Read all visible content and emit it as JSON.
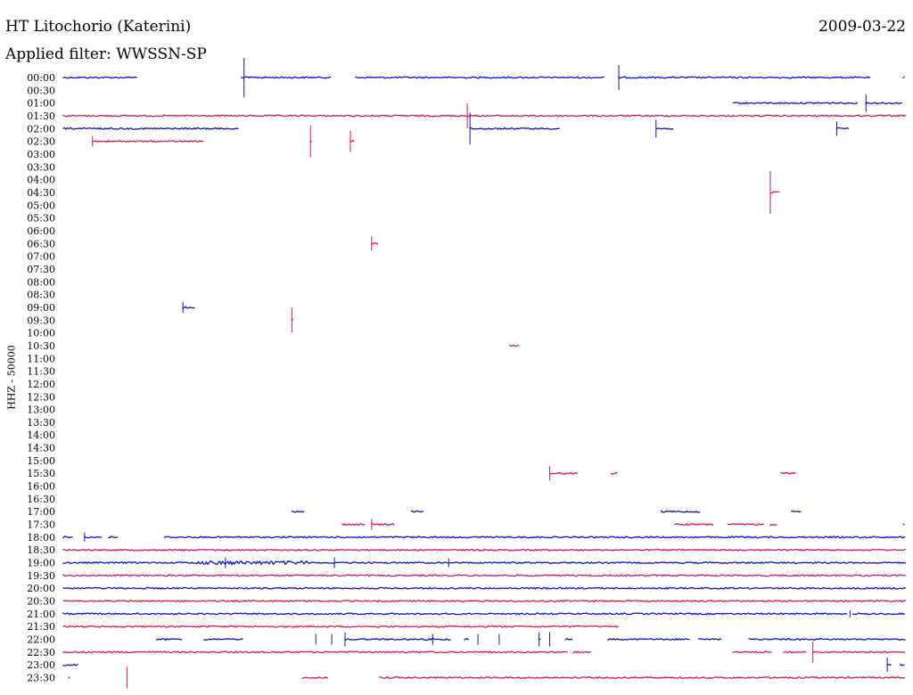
{
  "header": {
    "station": "HT Litochorio (Katerini)",
    "date": "2009-03-22",
    "filter": "Applied filter: WWSSN-SP"
  },
  "chart_data": {
    "type": "line",
    "title": "HT Litochorio (Katerini)",
    "ylabel": "HHZ - 50000",
    "colors": {
      "odd": "#1010d0",
      "even": "#e0164a"
    },
    "x_unit": "minutes within 30-minute row",
    "row_minutes": 30,
    "rows": [
      {
        "label": "00:00",
        "segments": [
          [
            0,
            2.8
          ],
          [
            6.7,
            10.1
          ],
          [
            11,
            20.4
          ],
          [
            20.9,
            30.4
          ],
          [
            31.6,
            31.7
          ]
        ],
        "spikes": [
          [
            6.8,
            22
          ],
          [
            20.9,
            14
          ]
        ]
      },
      {
        "label": "00:30",
        "segments": [],
        "spikes": []
      },
      {
        "label": "01:00",
        "segments": [
          [
            25.2,
            29.9
          ],
          [
            30.2,
            31.6
          ]
        ],
        "spikes": [
          [
            30.2,
            10
          ]
        ]
      },
      {
        "label": "01:30",
        "segments": [
          [
            0,
            31.7
          ]
        ],
        "spikes": [
          [
            15.2,
            14
          ]
        ]
      },
      {
        "label": "02:00",
        "segments": [
          [
            0,
            6.6
          ],
          [
            15.3,
            18.7
          ],
          [
            22.3,
            23
          ],
          [
            29.1,
            29.6
          ]
        ],
        "spikes": [
          [
            15.3,
            18
          ],
          [
            22.3,
            10
          ],
          [
            29.1,
            8
          ]
        ]
      },
      {
        "label": "02:30",
        "segments": [
          [
            1.1,
            5.3
          ],
          [
            9.3,
            9.4
          ],
          [
            10.8,
            11
          ]
        ],
        "spikes": [
          [
            1.1,
            6
          ],
          [
            9.3,
            18
          ],
          [
            10.8,
            12
          ]
        ]
      },
      {
        "label": "03:00",
        "segments": [],
        "spikes": []
      },
      {
        "label": "03:30",
        "segments": [],
        "spikes": []
      },
      {
        "label": "04:00",
        "segments": [],
        "spikes": []
      },
      {
        "label": "04:30",
        "segments": [
          [
            26.6,
            27
          ]
        ],
        "spikes": [
          [
            26.6,
            24
          ]
        ]
      },
      {
        "label": "05:00",
        "segments": [],
        "spikes": []
      },
      {
        "label": "05:30",
        "segments": [],
        "spikes": []
      },
      {
        "label": "06:00",
        "segments": [],
        "spikes": []
      },
      {
        "label": "06:30",
        "segments": [
          [
            11.6,
            11.9
          ]
        ],
        "spikes": [
          [
            11.6,
            8
          ]
        ]
      },
      {
        "label": "07:00",
        "segments": [],
        "spikes": []
      },
      {
        "label": "07:30",
        "segments": [],
        "spikes": []
      },
      {
        "label": "08:00",
        "segments": [],
        "spikes": []
      },
      {
        "label": "08:30",
        "segments": [],
        "spikes": []
      },
      {
        "label": "09:00",
        "segments": [
          [
            4.5,
            5
          ]
        ],
        "spikes": [
          [
            4.5,
            6
          ]
        ]
      },
      {
        "label": "09:30",
        "segments": [
          [
            8.6,
            8.7
          ]
        ],
        "spikes": [
          [
            8.6,
            14
          ]
        ]
      },
      {
        "label": "10:00",
        "segments": [],
        "spikes": []
      },
      {
        "label": "10:30",
        "segments": [
          [
            16.8,
            17.2
          ]
        ],
        "spikes": []
      },
      {
        "label": "11:00",
        "segments": [],
        "spikes": []
      },
      {
        "label": "11:30",
        "segments": [],
        "spikes": []
      },
      {
        "label": "12:00",
        "segments": [],
        "spikes": []
      },
      {
        "label": "12:30",
        "segments": [],
        "spikes": []
      },
      {
        "label": "13:00",
        "segments": [],
        "spikes": []
      },
      {
        "label": "13:30",
        "segments": [],
        "spikes": []
      },
      {
        "label": "14:00",
        "segments": [],
        "spikes": []
      },
      {
        "label": "14:30",
        "segments": [],
        "spikes": []
      },
      {
        "label": "15:00",
        "segments": [],
        "spikes": []
      },
      {
        "label": "15:30",
        "segments": [
          [
            18.3,
            19.4
          ],
          [
            20.6,
            20.9
          ],
          [
            27,
            27.6
          ]
        ],
        "spikes": [
          [
            18.3,
            8
          ]
        ]
      },
      {
        "label": "16:00",
        "segments": [],
        "spikes": []
      },
      {
        "label": "16:30",
        "segments": [],
        "spikes": []
      },
      {
        "label": "17:00",
        "segments": [
          [
            8.6,
            9.1
          ],
          [
            13.1,
            13.6
          ],
          [
            22.5,
            24
          ],
          [
            27.4,
            27.8
          ]
        ],
        "spikes": []
      },
      {
        "label": "17:30",
        "segments": [
          [
            10.5,
            11.4
          ],
          [
            11.6,
            12.5
          ],
          [
            23,
            24.5
          ],
          [
            25,
            26.4
          ],
          [
            26.6,
            26.9
          ],
          [
            31.6,
            31.7
          ]
        ],
        "spikes": [
          [
            11.6,
            6
          ]
        ]
      },
      {
        "label": "18:00",
        "segments": [
          [
            0,
            0.4
          ],
          [
            0.8,
            1.5
          ],
          [
            1.7,
            2.1
          ],
          [
            3.8,
            31.7
          ]
        ],
        "spikes": [
          [
            0.8,
            5
          ]
        ]
      },
      {
        "label": "18:30",
        "segments": [
          [
            0,
            31.7
          ]
        ],
        "spikes": []
      },
      {
        "label": "19:00",
        "segments": [
          [
            0,
            31.7
          ]
        ],
        "spikes": [
          [
            6.1,
            6
          ],
          [
            10.2,
            6
          ],
          [
            14.5,
            5
          ]
        ]
      },
      {
        "label": "19:30",
        "segments": [
          [
            0,
            31.7
          ]
        ],
        "spikes": []
      },
      {
        "label": "20:00",
        "segments": [
          [
            0,
            31.7
          ]
        ],
        "spikes": []
      },
      {
        "label": "20:30",
        "segments": [
          [
            0,
            31.7
          ]
        ],
        "spikes": []
      },
      {
        "label": "21:00",
        "segments": [
          [
            0,
            29.5
          ],
          [
            29.7,
            31.7
          ]
        ],
        "spikes": [
          [
            29.6,
            4
          ]
        ]
      },
      {
        "label": "21:30",
        "segments": [
          [
            0,
            20.9
          ]
        ],
        "spikes": []
      },
      {
        "label": "22:00",
        "segments": [
          [
            3.5,
            4.5
          ],
          [
            5.3,
            6.8
          ],
          [
            10.6,
            14.6
          ],
          [
            15.1,
            15.3
          ],
          [
            17.9,
            18
          ],
          [
            18.9,
            19.2
          ],
          [
            20.5,
            23.6
          ],
          [
            23.9,
            24.8
          ],
          [
            25.8,
            31.7
          ]
        ],
        "spikes": [
          [
            9.5,
            6
          ],
          [
            10.1,
            6
          ],
          [
            10.6,
            8
          ],
          [
            13.9,
            6
          ],
          [
            15.6,
            6
          ],
          [
            16.4,
            6
          ],
          [
            17.9,
            8
          ],
          [
            18.3,
            8
          ]
        ]
      },
      {
        "label": "22:30",
        "segments": [
          [
            0,
            19
          ],
          [
            19.2,
            19.9
          ],
          [
            25.2,
            26.7
          ],
          [
            27.1,
            28
          ],
          [
            28.2,
            31.7
          ]
        ],
        "spikes": [
          [
            28.2,
            12
          ]
        ]
      },
      {
        "label": "23:00",
        "segments": [
          [
            0,
            0.6
          ],
          [
            31,
            31.2
          ],
          [
            31.5,
            31.7
          ]
        ],
        "spikes": [
          [
            31,
            8
          ]
        ]
      },
      {
        "label": "23:30",
        "segments": [
          [
            0.2,
            0.3
          ],
          [
            9,
            10
          ],
          [
            11.9,
            31.7
          ]
        ],
        "spikes": [
          [
            2.4,
            12
          ]
        ]
      }
    ]
  }
}
